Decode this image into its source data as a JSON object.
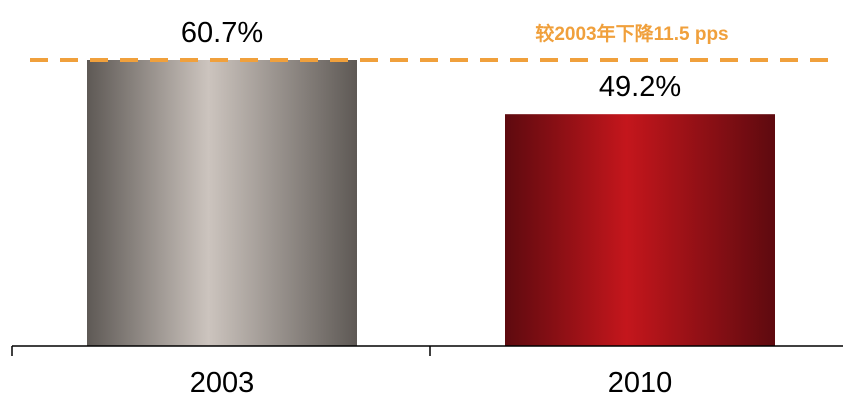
{
  "chart_data": {
    "type": "bar",
    "categories": [
      "2003",
      "2010"
    ],
    "values": [
      60.7,
      49.2
    ],
    "value_labels": [
      "60.7%",
      "49.2%"
    ],
    "title": "",
    "xlabel": "",
    "ylabel": "",
    "ylim": [
      0,
      60.7
    ],
    "grid": false,
    "legend": "none",
    "annotation": {
      "text": "较2003年下降11.5 pps",
      "line_value": 60.7,
      "line_style": "dashed",
      "color": "#F0A03C"
    },
    "colors": {
      "bar_2003_edge": "#5E5955",
      "bar_2003_center": "#CCC4BE",
      "bar_2010_edge": "#5E0A0F",
      "bar_2010_center": "#C4161C",
      "axis": "#000000"
    }
  }
}
